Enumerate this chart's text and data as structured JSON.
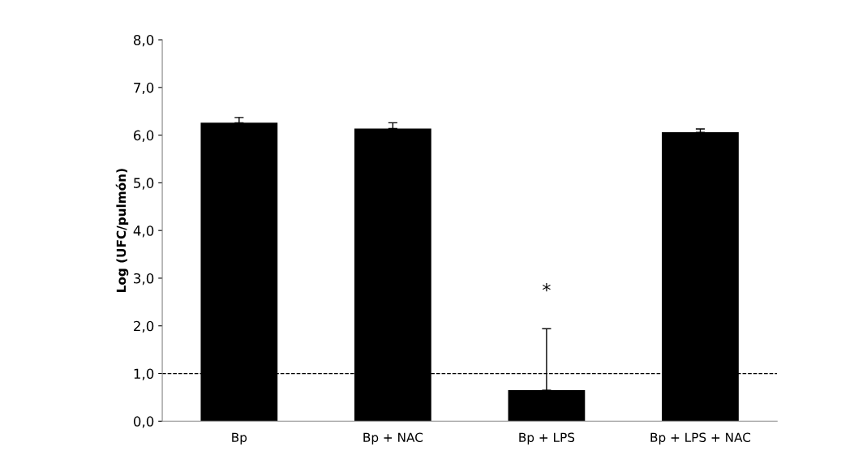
{
  "chart_data": {
    "type": "bar",
    "ylabel": "Log (UFC/pulmón)",
    "categories": [
      "Bp",
      "Bp + NAC",
      "Bp + LPS",
      "Bp + LPS + NAC"
    ],
    "values": [
      6.26,
      6.14,
      0.65,
      6.06
    ],
    "color": "#000000",
    "errors": [
      [
        6.26,
        6.37
      ],
      [
        6.14,
        6.26
      ],
      [
        0.65,
        1.94
      ],
      [
        6.06,
        6.13
      ]
    ],
    "ylim": [
      0,
      8
    ],
    "yticks": [
      {
        "value": 0,
        "label": "0,0"
      },
      {
        "value": 1,
        "label": "1,0"
      },
      {
        "value": 2,
        "label": "2,0"
      },
      {
        "value": 3,
        "label": "3,0"
      },
      {
        "value": 4,
        "label": "4,0"
      },
      {
        "value": 5,
        "label": "5,0"
      },
      {
        "value": 6,
        "label": "6,0"
      },
      {
        "value": 7,
        "label": "7,0"
      },
      {
        "value": 8,
        "label": "8,0"
      }
    ],
    "ref_lines": [
      {
        "axis": "y",
        "value": 1.0,
        "color": "#000000",
        "line_style": "dashed"
      }
    ],
    "annotations": [
      "*"
    ],
    "grid": false
  }
}
